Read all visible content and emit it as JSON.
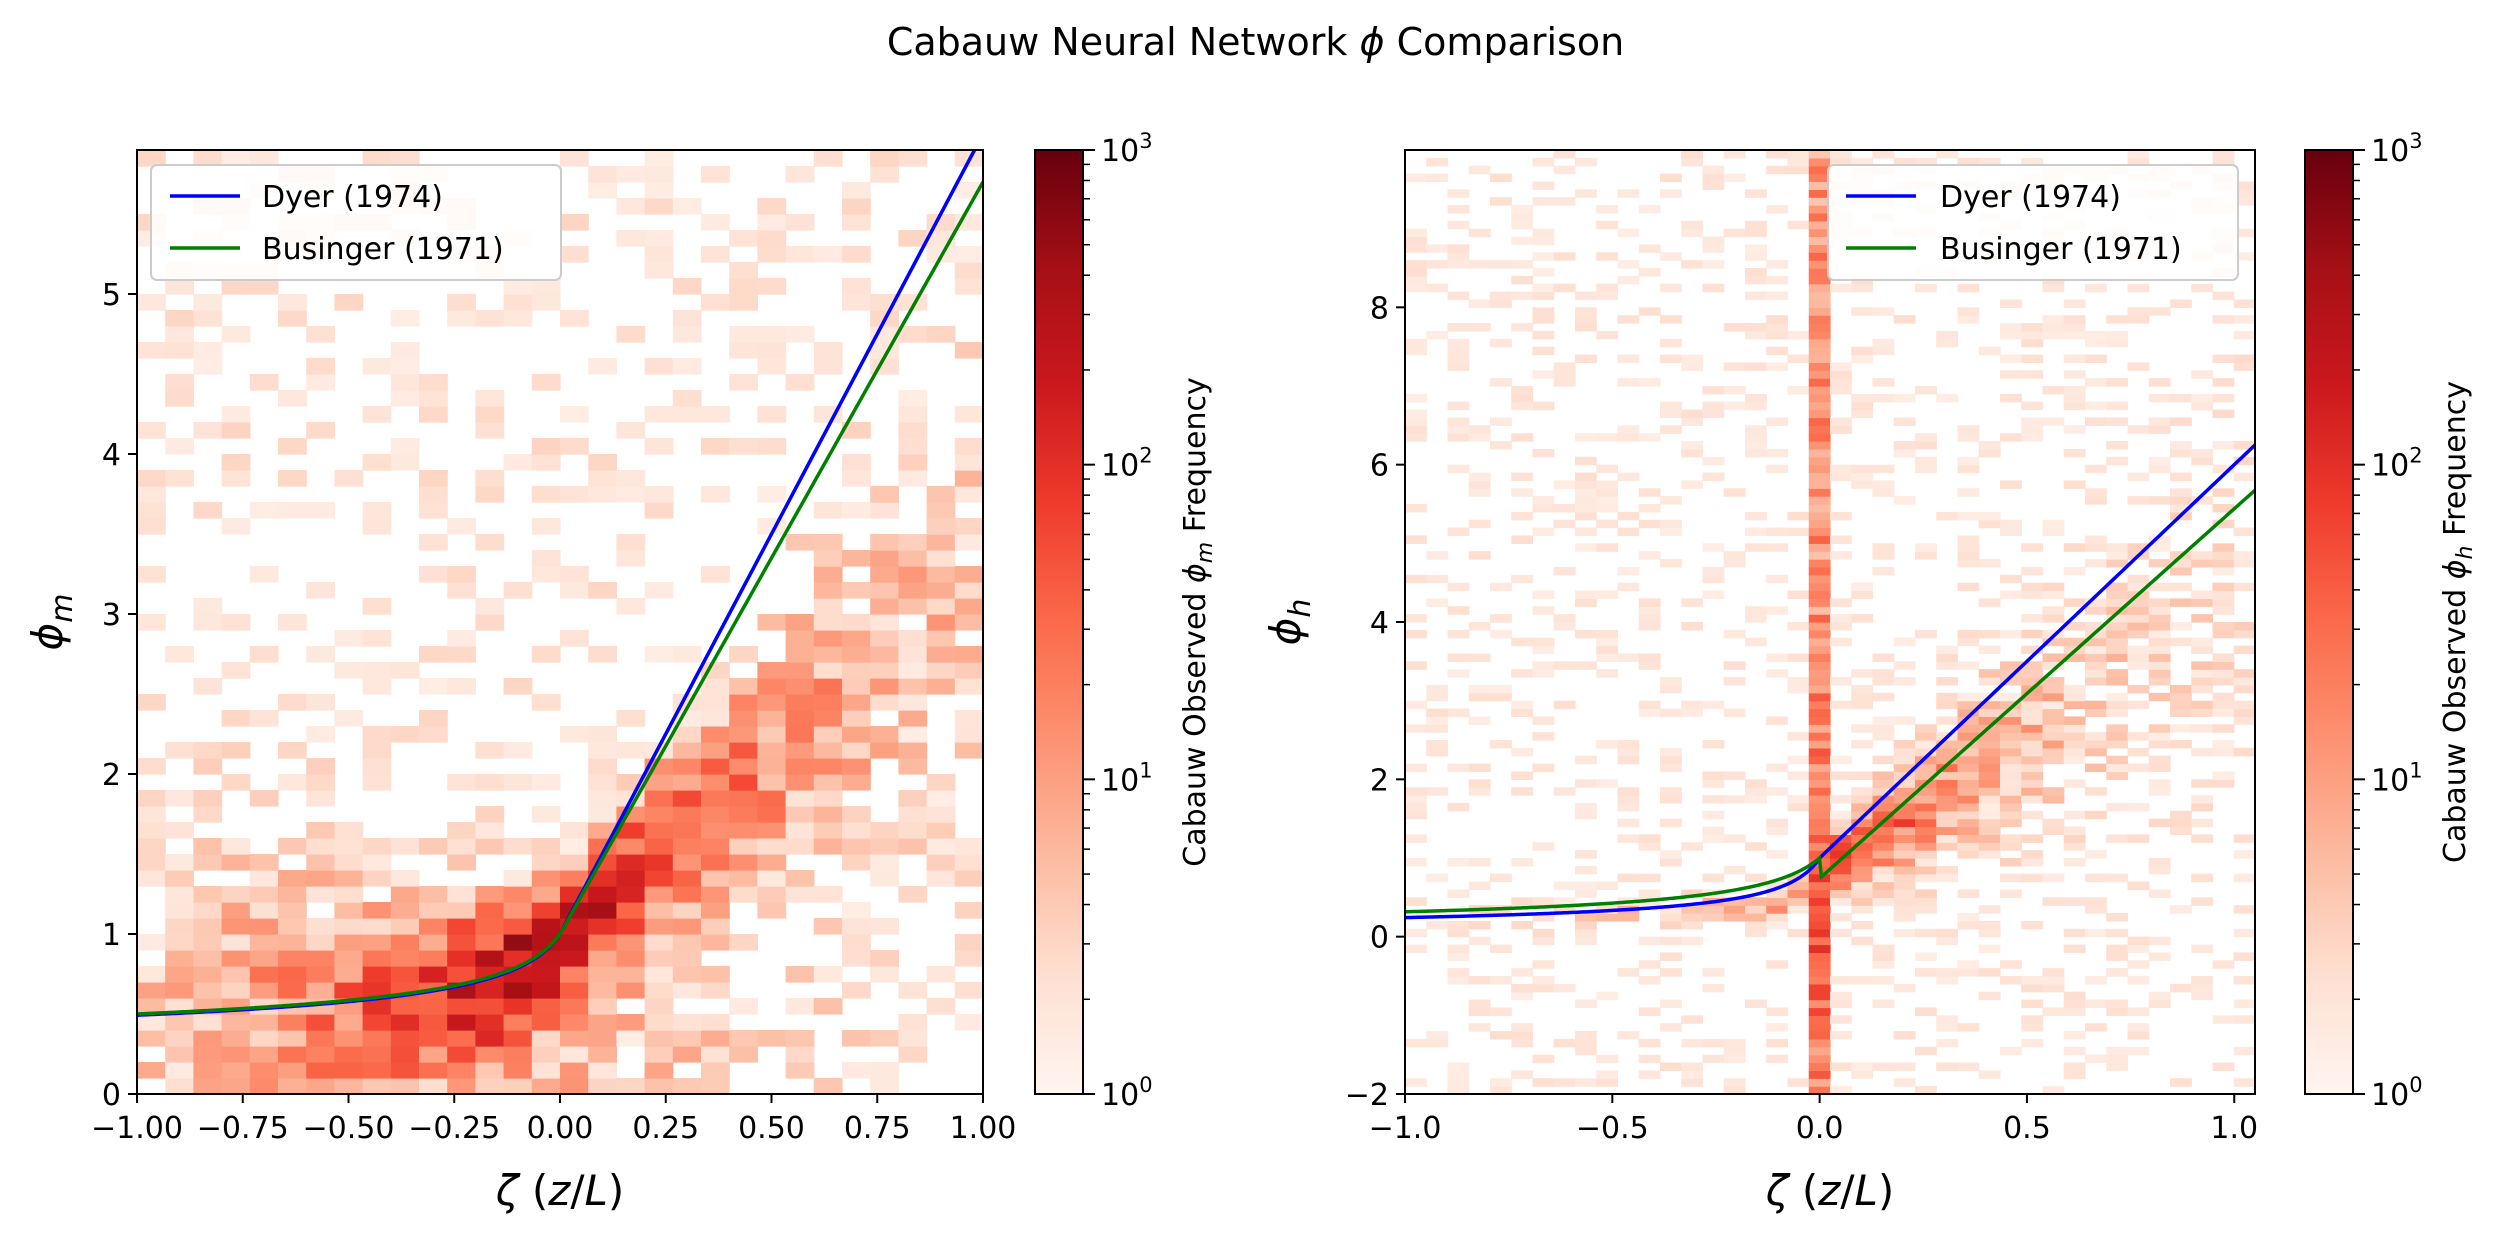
{
  "figure": {
    "title_prefix": "Cabauw Neural Network ",
    "title_symbol": "ϕ",
    "title_suffix": " Comparison"
  },
  "chart_data": [
    {
      "type": "heatmap",
      "panel": "left",
      "xlabel": "ζ (z/L)",
      "ylabel": "ϕm",
      "xlim": [
        -1.0,
        1.0
      ],
      "ylim": [
        0,
        5.9
      ],
      "xticks": [
        "−1.00",
        "−0.75",
        "−0.50",
        "−0.25",
        "0.00",
        "0.25",
        "0.50",
        "0.75",
        "1.00"
      ],
      "xtick_values": [
        -1.0,
        -0.75,
        -0.5,
        -0.25,
        0.0,
        0.25,
        0.5,
        0.75,
        1.0
      ],
      "yticks": [
        "0",
        "1",
        "2",
        "3",
        "4",
        "5"
      ],
      "ytick_values": [
        0,
        1,
        2,
        3,
        4,
        5
      ],
      "colorbar": {
        "label": "Cabauw Observed ϕm Frequency",
        "scale": "log",
        "range": [
          1,
          1000
        ],
        "tick_labels": [
          "10^0",
          "10^1",
          "10^2",
          "10^3"
        ],
        "colormap": "Reds"
      },
      "histogram": {
        "x_bins": 30,
        "y_bins": 59,
        "peak_x": 0.05,
        "peak_y": 1.0,
        "peak_count": 1000
      },
      "legend_position": "upper left",
      "series": [
        {
          "name": "Dyer (1974)",
          "color": "#0000ff",
          "stable_slope": 5.0,
          "unstable_coeff": 16,
          "unstable_exponent": -0.25,
          "x": [
            -1.0,
            -0.75,
            -0.5,
            -0.25,
            0.0,
            0.25,
            0.5,
            0.75,
            1.0
          ],
          "y": [
            0.5,
            0.53,
            0.57,
            0.65,
            1.0,
            2.25,
            3.5,
            4.75,
            6.0
          ]
        },
        {
          "name": "Businger (1971)",
          "color": "#008000",
          "stable_slope": 4.7,
          "unstable_coeff": 15,
          "unstable_exponent": -0.25,
          "x": [
            -1.0,
            -0.75,
            -0.5,
            -0.25,
            0.0,
            0.25,
            0.5,
            0.75,
            1.0
          ],
          "y": [
            0.51,
            0.54,
            0.58,
            0.66,
            1.0,
            2.18,
            3.35,
            4.53,
            5.7
          ]
        }
      ]
    },
    {
      "type": "heatmap",
      "panel": "right",
      "xlabel": "ζ (z/L)",
      "ylabel": "ϕh",
      "xlim": [
        -1.0,
        1.05
      ],
      "ylim": [
        -2,
        10
      ],
      "xticks": [
        "−1.0",
        "−0.5",
        "0.0",
        "0.5",
        "1.0"
      ],
      "xtick_values": [
        -1.0,
        -0.5,
        0.0,
        0.5,
        1.0
      ],
      "yticks": [
        "−2",
        "0",
        "2",
        "4",
        "6",
        "8"
      ],
      "ytick_values": [
        -2,
        0,
        2,
        4,
        6,
        8
      ],
      "colorbar": {
        "label": "Cabauw Observed ϕh Frequency",
        "scale": "log",
        "range": [
          1,
          1000
        ],
        "tick_labels": [
          "10^0",
          "10^1",
          "10^2",
          "10^3"
        ],
        "colormap": "Reds"
      },
      "histogram": {
        "x_bins": 40,
        "y_bins": 120,
        "peak_x": 0.02,
        "peak_y": 0.9,
        "peak_count": 500
      },
      "legend_position": "upper right",
      "series": [
        {
          "name": "Dyer (1974)",
          "color": "#0000ff",
          "stable_slope": 5.0,
          "stable_intercept": 1.0,
          "unstable_coeff": 16,
          "unstable_exponent": -0.5,
          "x": [
            -1.0,
            -0.5,
            0.0,
            0.5,
            1.05
          ],
          "y": [
            0.24,
            0.33,
            1.0,
            3.5,
            6.25
          ]
        },
        {
          "name": "Businger (1971)",
          "color": "#008000",
          "stable_slope": 4.7,
          "stable_intercept": 0.74,
          "unstable_coeff": 9,
          "unstable_exponent": -0.5,
          "x": [
            -1.0,
            -0.5,
            0.0,
            0.5,
            1.05
          ],
          "y": [
            0.23,
            0.31,
            0.74,
            3.09,
            5.68
          ]
        }
      ]
    }
  ]
}
